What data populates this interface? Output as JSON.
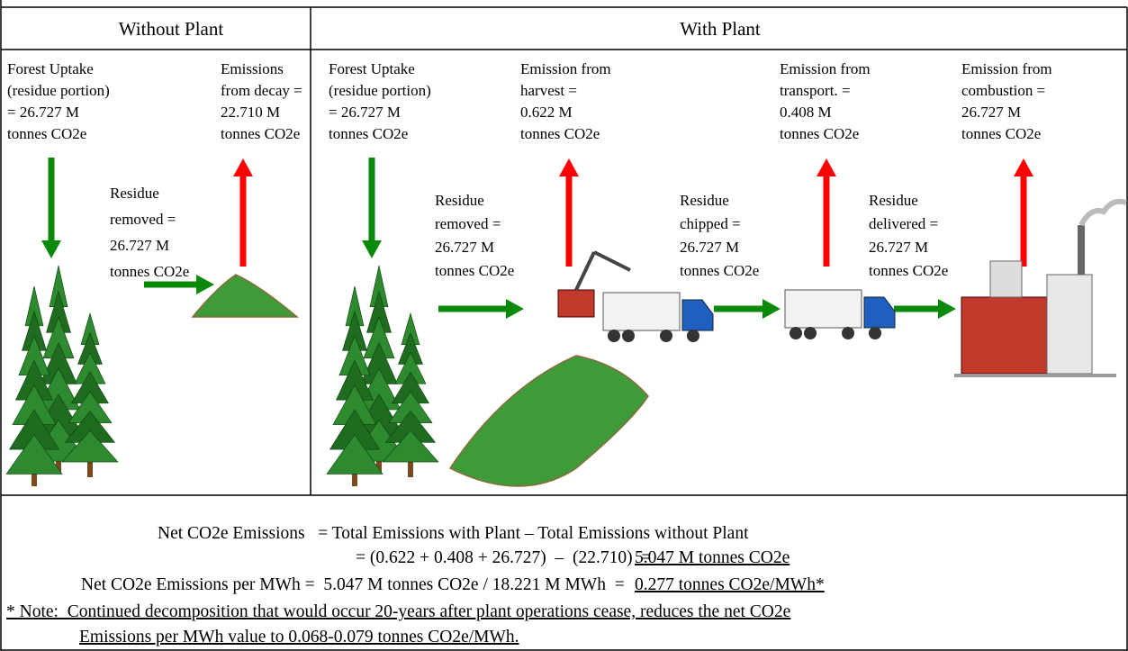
{
  "headers": [
    "Without Plant",
    "With Plant"
  ],
  "without_plant": {
    "labels": [
      {
        "lines": [
          "Forest Uptake",
          "(residue portion)",
          "= 26.727 M",
          "tonnes CO2e"
        ]
      },
      {
        "lines": [
          "Emissions",
          "from decay =",
          "22.710 M",
          "tonnes CO2e"
        ]
      },
      {
        "lines": [
          "Residue",
          "removed =",
          "26.727 M",
          "tonnes CO2e"
        ]
      }
    ]
  },
  "with_plant": {
    "labels": [
      {
        "lines": [
          "Forest Uptake",
          "(residue portion)",
          "= 26.727 M",
          "tonnes CO2e"
        ]
      },
      {
        "lines": [
          "Emission from",
          "harvest =",
          "0.622 M",
          "tonnes CO2e"
        ]
      },
      {
        "lines": [
          "Emission from",
          "transport. =",
          "0.408 M",
          "tonnes CO2e"
        ]
      },
      {
        "lines": [
          "Emission from",
          "combustion =",
          "26.727 M",
          "tonnes CO2e"
        ]
      },
      {
        "lines": [
          "Residue",
          "removed =",
          "26.727 M",
          "tonnes CO2e"
        ]
      },
      {
        "lines": [
          "Residue",
          "chipped =",
          "26.727 M",
          "tonnes CO2e"
        ]
      },
      {
        "lines": [
          "Residue",
          "delivered =",
          "26.727 M",
          "tonnes CO2e"
        ]
      }
    ]
  },
  "summary": {
    "line1": "Net CO2e Emissions   = Total Emissions with Plant – Total Emissions without Plant",
    "line2": {
      "text": "= (0.622 + 0.408 + 26.727)  –  (22.710)  =",
      "result": "5.047 M tonnes CO2e"
    },
    "line3": {
      "text": "Net CO2e Emissions per MWh =  5.047 M tonnes CO2e / 18.221 M MWh  =",
      "result": "0.277 tonnes CO2e/MWh*"
    },
    "note": [
      "* Note:  Continued decomposition that would occur 20-years after plant operations cease, reduces the net CO2e",
      "Emissions per MWh value to 0.068-0.079 tonnes CO2e/MWh."
    ]
  }
}
